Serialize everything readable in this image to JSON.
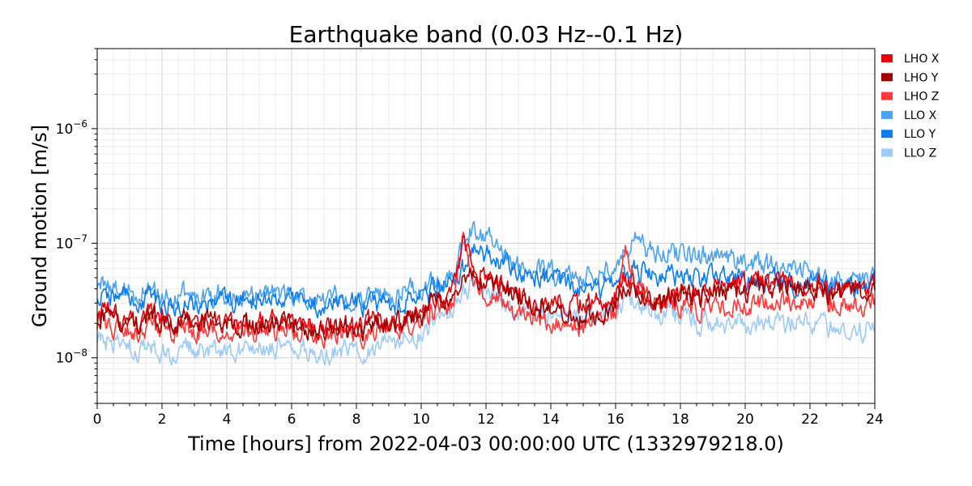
{
  "chart_data": {
    "type": "line",
    "title": "Earthquake band (0.03 Hz--0.1 Hz)",
    "xlabel": "Time [hours] from 2022-04-03 00:00:00 UTC (1332979218.0)",
    "ylabel": "Ground motion [m/s]",
    "xlim": [
      0,
      24
    ],
    "ylim": [
      4e-09,
      5e-06
    ],
    "yscale": "log",
    "xticks": [
      0,
      2,
      4,
      6,
      8,
      10,
      12,
      14,
      16,
      18,
      20,
      22,
      24
    ],
    "xtick_labels": [
      "0",
      "2",
      "4",
      "6",
      "8",
      "10",
      "12",
      "14",
      "16",
      "18",
      "20",
      "22",
      "24"
    ],
    "yticks": [
      1e-08,
      1e-07,
      1e-06
    ],
    "ytick_labels": [
      {
        "base": "10",
        "exp": "−8"
      },
      {
        "base": "10",
        "exp": "−7"
      },
      {
        "base": "10",
        "exp": "−6"
      }
    ],
    "grid": true,
    "legend": "outside-right-top",
    "x": [
      0,
      1,
      2,
      3,
      4,
      5,
      6,
      7,
      8,
      9,
      10,
      10.5,
      11,
      11.3,
      11.6,
      12,
      12.5,
      13,
      14,
      15,
      15.5,
      16,
      16.3,
      16.6,
      17,
      18,
      19,
      20,
      21,
      22,
      23,
      24
    ],
    "series": [
      {
        "name": "LHO X",
        "color": "#e8000b",
        "values": [
          2.5e-08,
          2.1e-08,
          2.3e-08,
          2e-08,
          2e-08,
          2.1e-08,
          1.9e-08,
          1.9e-08,
          2e-08,
          2.1e-08,
          2.3e-08,
          3e-08,
          4e-08,
          9e-08,
          7e-08,
          5e-08,
          4e-08,
          3.5e-08,
          3e-08,
          3e-08,
          3.2e-08,
          3.5e-08,
          5e-08,
          4e-08,
          3.5e-08,
          3.5e-08,
          4e-08,
          4.5e-08,
          4.5e-08,
          4.2e-08,
          4e-08,
          4e-08
        ]
      },
      {
        "name": "LHO Y",
        "color": "#a00000",
        "values": [
          2.3e-08,
          2e-08,
          2.2e-08,
          2.2e-08,
          2e-08,
          2e-08,
          1.9e-08,
          1.9e-08,
          1.8e-08,
          2e-08,
          2.4e-08,
          3e-08,
          3.3e-08,
          4.5e-08,
          5e-08,
          4.5e-08,
          3.8e-08,
          3.3e-08,
          2.5e-08,
          2.2e-08,
          2.4e-08,
          3e-08,
          4e-08,
          3.5e-08,
          3.2e-08,
          3.5e-08,
          3.5e-08,
          3.8e-08,
          4e-08,
          4e-08,
          3.8e-08,
          3.5e-08
        ]
      },
      {
        "name": "LHO Z",
        "color": "#ff3a3a",
        "values": [
          2e-08,
          1.7e-08,
          1.8e-08,
          1.7e-08,
          1.6e-08,
          1.7e-08,
          1.7e-08,
          1.6e-08,
          1.6e-08,
          1.8e-08,
          2e-08,
          2.6e-08,
          3e-08,
          1.2e-07,
          4.5e-08,
          3.5e-08,
          3e-08,
          2.5e-08,
          2e-08,
          1.9e-08,
          2e-08,
          2.3e-08,
          8e-08,
          4e-08,
          3.2e-08,
          2.8e-08,
          2.8e-08,
          3e-08,
          3e-08,
          3.2e-08,
          3e-08,
          3e-08
        ]
      },
      {
        "name": "LLO X",
        "color": "#4ba3f5",
        "values": [
          4.5e-08,
          4e-08,
          3.5e-08,
          3.5e-08,
          3.5e-08,
          3.8e-08,
          3.6e-08,
          3.5e-08,
          3.4e-08,
          3.5e-08,
          4e-08,
          4.5e-08,
          5e-08,
          1e-07,
          1.4e-07,
          1.1e-07,
          8e-08,
          6e-08,
          5.5e-08,
          5e-08,
          5.5e-08,
          6e-08,
          8e-08,
          1e-07,
          9e-08,
          8e-08,
          8e-08,
          7e-08,
          6e-08,
          5.5e-08,
          5e-08,
          5e-08
        ]
      },
      {
        "name": "LLO Y",
        "color": "#0a7cf0",
        "values": [
          3.5e-08,
          3.3e-08,
          3e-08,
          3e-08,
          3e-08,
          3.2e-08,
          3.1e-08,
          3e-08,
          2.9e-08,
          3e-08,
          3.3e-08,
          4e-08,
          4.5e-08,
          6e-08,
          9e-08,
          8e-08,
          6.5e-08,
          5.5e-08,
          5e-08,
          4.2e-08,
          4e-08,
          4.5e-08,
          5e-08,
          6e-08,
          5.5e-08,
          5e-08,
          4.8e-08,
          4.5e-08,
          4.5e-08,
          4.5e-08,
          4.2e-08,
          4.2e-08
        ]
      },
      {
        "name": "LLO Z",
        "color": "#9ecbf7",
        "values": [
          1.4e-08,
          1.2e-08,
          1.1e-08,
          1.2e-08,
          1.2e-08,
          1.2e-08,
          1.2e-08,
          1.1e-08,
          1.2e-08,
          1.3e-08,
          1.6e-08,
          2e-08,
          2.5e-08,
          3.5e-08,
          4.5e-08,
          3.8e-08,
          3e-08,
          2.6e-08,
          2.3e-08,
          2.2e-08,
          2.3e-08,
          2.6e-08,
          3e-08,
          2.8e-08,
          2.5e-08,
          2.2e-08,
          2e-08,
          2e-08,
          2e-08,
          1.9e-08,
          1.8e-08,
          1.7e-08
        ]
      }
    ]
  }
}
